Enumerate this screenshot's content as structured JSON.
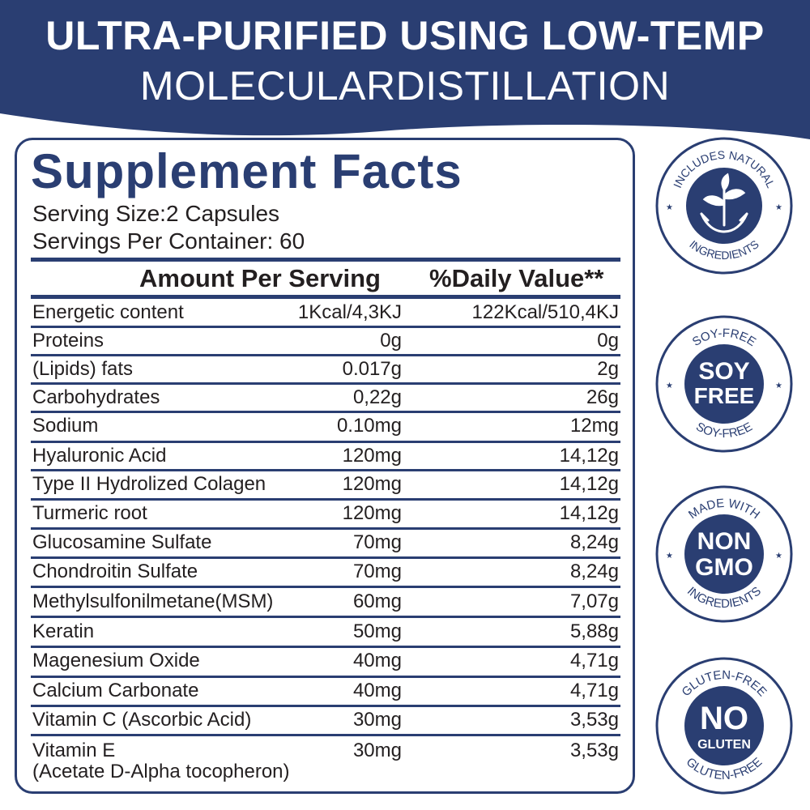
{
  "banner": {
    "line1": "ULTRA-PURIFIED USING LOW-TEMP",
    "line2": "MOLECULARDISTILLATION",
    "color": "#2a3e72"
  },
  "facts": {
    "title": "Supplement Facts",
    "serving_size": "Serving Size:2 Capsules",
    "servings_per_container": "Servings Per Container: 60",
    "col_amount": "Amount Per Serving",
    "col_daily": "%Daily Value**",
    "rows": [
      {
        "name": "Energetic content",
        "amount": "1Kcal/4,3KJ",
        "daily": "122Kcal/510,4KJ"
      },
      {
        "name": "Proteins",
        "amount": "0g",
        "daily": "0g"
      },
      {
        "name": "(Lipids) fats",
        "amount": "0.017g",
        "daily": "2g"
      },
      {
        "name": "Carbohydrates",
        "amount": "0,22g",
        "daily": "26g"
      },
      {
        "name": "Sodium",
        "amount": "0.10mg",
        "daily": "12mg"
      },
      {
        "name": "Hyaluronic Acid",
        "amount": "120mg",
        "daily": "14,12g"
      },
      {
        "name": "Type II Hydrolized Colagen",
        "amount": "120mg",
        "daily": "14,12g"
      },
      {
        "name": "Turmeric root",
        "amount": "120mg",
        "daily": "14,12g"
      },
      {
        "name": "Glucosamine Sulfate",
        "amount": "70mg",
        "daily": "8,24g"
      },
      {
        "name": "Chondroitin Sulfate",
        "amount": "70mg",
        "daily": "8,24g"
      },
      {
        "name": "Methylsulfonilmetane(MSM)",
        "amount": "60mg",
        "daily": "7,07g"
      },
      {
        "name": "Keratin",
        "amount": "50mg",
        "daily": "5,88g"
      },
      {
        "name": "Magenesium Oxide",
        "amount": "40mg",
        "daily": "4,71g"
      },
      {
        "name": "Calcium Carbonate",
        "amount": "40mg",
        "daily": "4,71g"
      },
      {
        "name": "Vitamin C (Ascorbic Acid)",
        "amount": "30mg",
        "daily": "3,53g"
      },
      {
        "name": "Vitamin E",
        "name_sub": "(Acetate D-Alpha tocopheron)",
        "amount": "30mg",
        "daily": "3,53g"
      }
    ]
  },
  "badges": [
    {
      "icon": "plant-in-hands-icon",
      "top_text": "INCLUDES NATURAL",
      "bottom_text": "INGREDIENTS"
    },
    {
      "icon": "",
      "top_text": "SOY-FREE",
      "center1": "SOY",
      "center2": "FREE",
      "bottom_text": "SOY-FREE"
    },
    {
      "icon": "",
      "top_text": "MADE WITH",
      "center1": "NON",
      "center2": "GMO",
      "bottom_text": "INGREDIENTS"
    },
    {
      "icon": "",
      "top_text": "GLUTEN-FREE",
      "center1": "NO",
      "center2": "GLUTEN",
      "bottom_text": "GLUTEN-FREE"
    }
  ]
}
